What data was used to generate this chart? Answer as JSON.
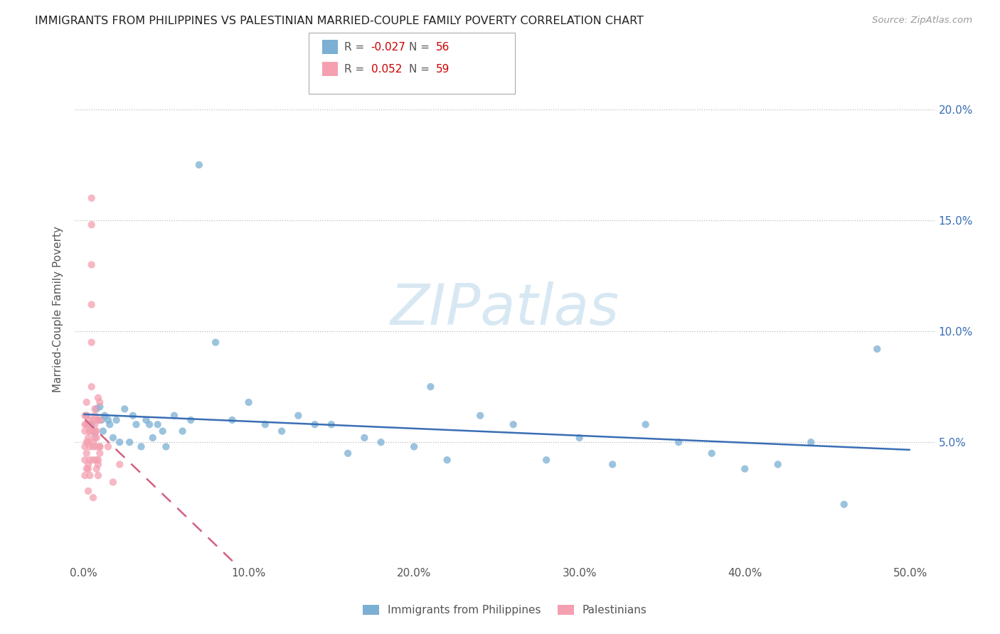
{
  "title": "IMMIGRANTS FROM PHILIPPINES VS PALESTINIAN MARRIED-COUPLE FAMILY POVERTY CORRELATION CHART",
  "source": "Source: ZipAtlas.com",
  "ylabel": "Married-Couple Family Poverty",
  "xlabel_blue": "Immigrants from Philippines",
  "xlabel_pink": "Palestinians",
  "xlim": [
    -0.005,
    0.515
  ],
  "ylim": [
    -0.005,
    0.225
  ],
  "xticks": [
    0.0,
    0.1,
    0.2,
    0.3,
    0.4,
    0.5
  ],
  "xtick_labels": [
    "0.0%",
    "10.0%",
    "20.0%",
    "30.0%",
    "40.0%",
    "50.0%"
  ],
  "yticks": [
    0.05,
    0.1,
    0.15,
    0.2
  ],
  "ytick_labels": [
    "5.0%",
    "10.0%",
    "15.0%",
    "20.0%"
  ],
  "legend_r_blue": "-0.027",
  "legend_n_blue": "56",
  "legend_r_pink": "0.052",
  "legend_n_pink": "59",
  "color_blue": "#7BAFD4",
  "color_pink": "#F4A0B0",
  "color_blue_line": "#3A6EB5",
  "color_pink_line": "#D46080",
  "watermark_text": "ZIPatlas",
  "watermark_color": "#D8E8F3",
  "blue_x": [
    0.002,
    0.005,
    0.007,
    0.008,
    0.009,
    0.01,
    0.011,
    0.012,
    0.013,
    0.015,
    0.016,
    0.018,
    0.02,
    0.022,
    0.025,
    0.028,
    0.03,
    0.032,
    0.035,
    0.038,
    0.04,
    0.042,
    0.045,
    0.048,
    0.05,
    0.055,
    0.06,
    0.065,
    0.07,
    0.08,
    0.09,
    0.1,
    0.11,
    0.12,
    0.13,
    0.14,
    0.15,
    0.16,
    0.17,
    0.18,
    0.2,
    0.21,
    0.22,
    0.24,
    0.26,
    0.28,
    0.3,
    0.32,
    0.34,
    0.36,
    0.38,
    0.4,
    0.42,
    0.44,
    0.46,
    0.48
  ],
  "blue_y": [
    0.062,
    0.058,
    0.054,
    0.065,
    0.06,
    0.066,
    0.06,
    0.055,
    0.062,
    0.06,
    0.058,
    0.052,
    0.06,
    0.05,
    0.065,
    0.05,
    0.062,
    0.058,
    0.048,
    0.06,
    0.058,
    0.052,
    0.058,
    0.055,
    0.048,
    0.062,
    0.055,
    0.06,
    0.175,
    0.095,
    0.06,
    0.068,
    0.058,
    0.055,
    0.062,
    0.058,
    0.058,
    0.045,
    0.052,
    0.05,
    0.048,
    0.075,
    0.042,
    0.062,
    0.058,
    0.042,
    0.052,
    0.04,
    0.058,
    0.05,
    0.045,
    0.038,
    0.04,
    0.05,
    0.022,
    0.092
  ],
  "pink_x": [
    0.001,
    0.002,
    0.003,
    0.004,
    0.005,
    0.006,
    0.007,
    0.008,
    0.009,
    0.01,
    0.001,
    0.002,
    0.003,
    0.004,
    0.005,
    0.006,
    0.007,
    0.008,
    0.009,
    0.01,
    0.001,
    0.002,
    0.003,
    0.004,
    0.005,
    0.006,
    0.007,
    0.008,
    0.009,
    0.01,
    0.001,
    0.002,
    0.003,
    0.004,
    0.005,
    0.006,
    0.007,
    0.008,
    0.009,
    0.01,
    0.001,
    0.002,
    0.003,
    0.004,
    0.005,
    0.006,
    0.007,
    0.008,
    0.009,
    0.01,
    0.001,
    0.002,
    0.003,
    0.004,
    0.005,
    0.006,
    0.015,
    0.018,
    0.022
  ],
  "pink_y": [
    0.062,
    0.068,
    0.058,
    0.055,
    0.16,
    0.055,
    0.052,
    0.052,
    0.06,
    0.048,
    0.055,
    0.058,
    0.05,
    0.055,
    0.148,
    0.05,
    0.065,
    0.048,
    0.07,
    0.045,
    0.058,
    0.062,
    0.052,
    0.06,
    0.13,
    0.06,
    0.062,
    0.055,
    0.042,
    0.068,
    0.048,
    0.05,
    0.04,
    0.048,
    0.112,
    0.048,
    0.058,
    0.042,
    0.04,
    0.06,
    0.042,
    0.045,
    0.038,
    0.042,
    0.095,
    0.042,
    0.055,
    0.038,
    0.035,
    0.048,
    0.035,
    0.038,
    0.028,
    0.035,
    0.075,
    0.025,
    0.048,
    0.032,
    0.04
  ]
}
